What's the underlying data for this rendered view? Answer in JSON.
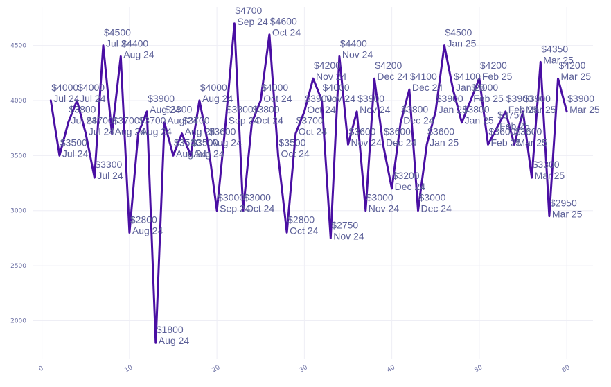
{
  "chart_data": {
    "type": "line",
    "title": "",
    "xlabel": "",
    "ylabel": "",
    "xlim": [
      -1,
      63
    ],
    "ylim": [
      1650,
      4850
    ],
    "x_ticks": [
      0,
      10,
      20,
      30,
      40,
      50,
      60
    ],
    "y_ticks": [
      2000,
      2500,
      3000,
      3500,
      4000,
      4500
    ],
    "grid": true,
    "line_color": "#4a0fa3",
    "points": [
      {
        "x": 1,
        "y": 4000,
        "value": "$4000",
        "month": "Jul 24"
      },
      {
        "x": 2,
        "y": 3500,
        "value": "$3500",
        "month": "Jul 24"
      },
      {
        "x": 3,
        "y": 3800,
        "value": "$3800",
        "month": "Jul 24"
      },
      {
        "x": 4,
        "y": 4000,
        "value": "$4000",
        "month": "Jul 24"
      },
      {
        "x": 5,
        "y": 3700,
        "value": "$3700",
        "month": "Jul 24"
      },
      {
        "x": 6,
        "y": 3300,
        "value": "$3300",
        "month": "Jul 24"
      },
      {
        "x": 7,
        "y": 4500,
        "value": "$4500",
        "month": "Jul 24"
      },
      {
        "x": 8,
        "y": 3700,
        "value": "$3700",
        "month": "Aug 24"
      },
      {
        "x": 9,
        "y": 4400,
        "value": "$4400",
        "month": "Aug 24"
      },
      {
        "x": 10,
        "y": 2800,
        "value": "$2800",
        "month": "Aug 24"
      },
      {
        "x": 11,
        "y": 3700,
        "value": "$3700",
        "month": "Aug 24"
      },
      {
        "x": 12,
        "y": 3900,
        "value": "$3900",
        "month": "Aug 24"
      },
      {
        "x": 13,
        "y": 1800,
        "value": "$1800",
        "month": "Aug 24"
      },
      {
        "x": 14,
        "y": 3800,
        "value": "$3800",
        "month": "Aug 24"
      },
      {
        "x": 15,
        "y": 3500,
        "value": "$3500",
        "month": "Aug 24"
      },
      {
        "x": 16,
        "y": 3700,
        "value": "$3700",
        "month": "Aug 24"
      },
      {
        "x": 17,
        "y": 3500,
        "value": "$3500",
        "month": "Aug 24"
      },
      {
        "x": 18,
        "y": 4000,
        "value": "$4000",
        "month": "Aug 24"
      },
      {
        "x": 19,
        "y": 3600,
        "value": "$3600",
        "month": "Aug 24"
      },
      {
        "x": 20,
        "y": 3000,
        "value": "$3000",
        "month": "Sep 24"
      },
      {
        "x": 21,
        "y": 3800,
        "value": "$3800",
        "month": "Sep 24"
      },
      {
        "x": 22,
        "y": 4700,
        "value": "$4700",
        "month": "Sep 24"
      },
      {
        "x": 23,
        "y": 3000,
        "value": "$3000",
        "month": "Oct 24"
      },
      {
        "x": 24,
        "y": 3800,
        "value": "$3800",
        "month": "Oct 24"
      },
      {
        "x": 25,
        "y": 4000,
        "value": "$4000",
        "month": "Oct 24"
      },
      {
        "x": 26,
        "y": 4600,
        "value": "$4600",
        "month": "Oct 24"
      },
      {
        "x": 27,
        "y": 3500,
        "value": "$3500",
        "month": "Oct 24"
      },
      {
        "x": 28,
        "y": 2800,
        "value": "$2800",
        "month": "Oct 24"
      },
      {
        "x": 29,
        "y": 3700,
        "value": "$3700",
        "month": "Oct 24"
      },
      {
        "x": 30,
        "y": 3900,
        "value": "$3900",
        "month": "Oct 24"
      },
      {
        "x": 31,
        "y": 4200,
        "value": "$4200",
        "month": "Nov 24"
      },
      {
        "x": 32,
        "y": 4000,
        "value": "$4000",
        "month": "Nov 24"
      },
      {
        "x": 33,
        "y": 2750,
        "value": "$2750",
        "month": "Nov 24"
      },
      {
        "x": 34,
        "y": 4400,
        "value": "$4400",
        "month": "Nov 24"
      },
      {
        "x": 35,
        "y": 3600,
        "value": "$3600",
        "month": "Nov 24"
      },
      {
        "x": 36,
        "y": 3900,
        "value": "$3900",
        "month": "Nov 24"
      },
      {
        "x": 37,
        "y": 3000,
        "value": "$3000",
        "month": "Nov 24"
      },
      {
        "x": 38,
        "y": 4200,
        "value": "$4200",
        "month": "Dec 24"
      },
      {
        "x": 39,
        "y": 3600,
        "value": "$3600",
        "month": "Dec 24"
      },
      {
        "x": 40,
        "y": 3200,
        "value": "$3200",
        "month": "Dec 24"
      },
      {
        "x": 41,
        "y": 3800,
        "value": "$3800",
        "month": "Dec 24"
      },
      {
        "x": 42,
        "y": 4100,
        "value": "$4100",
        "month": "Dec 24"
      },
      {
        "x": 43,
        "y": 3000,
        "value": "$3000",
        "month": "Dec 24"
      },
      {
        "x": 44,
        "y": 3600,
        "value": "$3600",
        "month": "Jan 25"
      },
      {
        "x": 45,
        "y": 3900,
        "value": "$3900",
        "month": "Jan 25"
      },
      {
        "x": 46,
        "y": 4500,
        "value": "$4500",
        "month": "Jan 25"
      },
      {
        "x": 47,
        "y": 4100,
        "value": "$4100",
        "month": "Jan 25"
      },
      {
        "x": 48,
        "y": 3800,
        "value": "$3800",
        "month": "Jan 25"
      },
      {
        "x": 49,
        "y": 4000,
        "value": "$4000",
        "month": "Feb 25"
      },
      {
        "x": 50,
        "y": 4200,
        "value": "$4200",
        "month": "Feb 25"
      },
      {
        "x": 51,
        "y": 3600,
        "value": "$3600",
        "month": "Feb 25"
      },
      {
        "x": 52,
        "y": 3750,
        "value": "$3750",
        "month": "Feb 25"
      },
      {
        "x": 53,
        "y": 3900,
        "value": "$3900",
        "month": "Feb 25"
      },
      {
        "x": 54,
        "y": 3600,
        "value": "$3600",
        "month": "Mar 25"
      },
      {
        "x": 55,
        "y": 3900,
        "value": "$3900",
        "month": "Mar 25"
      },
      {
        "x": 56,
        "y": 3300,
        "value": "$3300",
        "month": "Mar 25"
      },
      {
        "x": 57,
        "y": 4350,
        "value": "$4350",
        "month": "Mar 25"
      },
      {
        "x": 58,
        "y": 2950,
        "value": "$2950",
        "month": "Mar 25"
      },
      {
        "x": 59,
        "y": 4200,
        "value": "$4200",
        "month": "Mar 25"
      },
      {
        "x": 60,
        "y": 3900,
        "value": "$3900",
        "month": "Mar 25"
      }
    ]
  }
}
